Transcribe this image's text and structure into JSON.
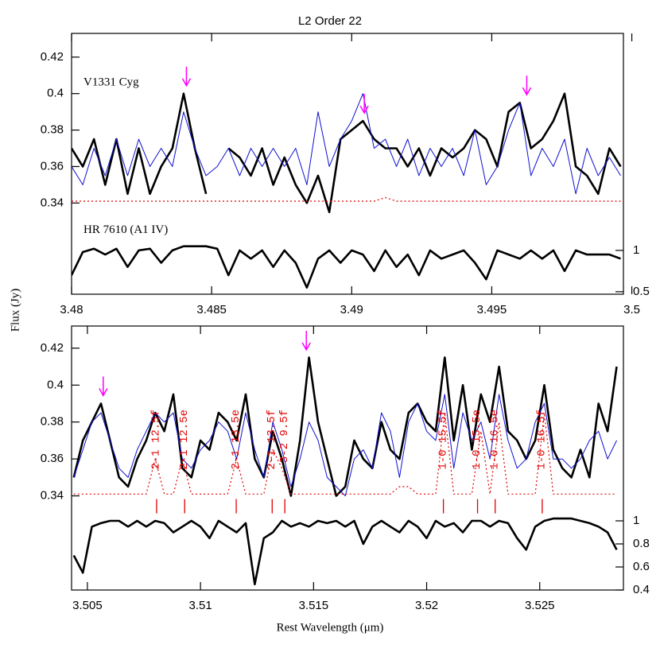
{
  "chart_data": [
    {
      "type": "line",
      "title": "L2 Order 22",
      "ylabel": "Flux (Jy)",
      "x": [
        3.48,
        3.4804,
        3.4808,
        3.4812,
        3.4816,
        3.482,
        3.4824,
        3.4828,
        3.4832,
        3.4836,
        3.484,
        3.4844,
        3.4848,
        3.4852,
        3.4856,
        3.486,
        3.4864,
        3.4868,
        3.4872,
        3.4876,
        3.488,
        3.4884,
        3.4888,
        3.4892,
        3.4896,
        3.49,
        3.4904,
        3.4908,
        3.4912,
        3.4916,
        3.492,
        3.4924,
        3.4928,
        3.4932,
        3.4936,
        3.494,
        3.4944,
        3.4948,
        3.4952,
        3.4956,
        3.496,
        3.4964,
        3.4968,
        3.4972,
        3.4976,
        3.498,
        3.4984,
        3.4988,
        3.4992,
        3.4996
      ],
      "series": [
        {
          "name": "V1331 Cyg",
          "color": "#000000",
          "width": 2.6,
          "linestyle": "solid",
          "values": [
            0.37,
            0.36,
            0.375,
            0.35,
            0.375,
            0.345,
            0.37,
            0.345,
            0.36,
            0.37,
            0.4,
            0.37,
            0.345,
            null,
            0.37,
            0.365,
            0.355,
            0.37,
            0.35,
            0.365,
            0.35,
            0.34,
            0.355,
            0.335,
            0.375,
            0.38,
            0.385,
            0.375,
            0.37,
            0.37,
            0.36,
            0.37,
            0.355,
            0.37,
            0.365,
            0.37,
            0.38,
            0.375,
            0.36,
            0.39,
            0.395,
            0.37,
            0.375,
            0.385,
            0.4,
            0.36,
            0.355,
            0.345,
            0.37,
            0.36
          ]
        },
        {
          "color": "#1010d0",
          "width": 1,
          "linestyle": "solid",
          "values": [
            0.36,
            0.35,
            0.37,
            0.355,
            0.375,
            0.355,
            0.375,
            0.36,
            0.37,
            0.36,
            0.39,
            0.37,
            0.355,
            0.36,
            0.37,
            0.355,
            0.37,
            0.36,
            0.37,
            0.36,
            0.37,
            0.35,
            0.39,
            0.36,
            0.375,
            0.385,
            0.4,
            0.37,
            0.375,
            0.36,
            0.375,
            0.355,
            0.37,
            0.36,
            0.37,
            0.355,
            0.38,
            0.35,
            0.36,
            0.38,
            0.395,
            0.355,
            0.37,
            0.36,
            0.375,
            0.345,
            0.37,
            0.355,
            0.365,
            0.355
          ]
        },
        {
          "color": "#e00000",
          "width": 1.2,
          "linestyle": "dotted",
          "values": [
            0.341,
            0.341,
            0.341,
            0.341,
            0.341,
            0.341,
            0.341,
            0.341,
            0.341,
            0.341,
            0.341,
            0.341,
            0.341,
            0.341,
            0.341,
            0.341,
            0.341,
            0.341,
            0.341,
            0.341,
            0.341,
            0.341,
            0.341,
            0.341,
            0.341,
            0.341,
            0.341,
            0.341,
            0.343,
            0.341,
            0.341,
            0.341,
            0.341,
            0.341,
            0.341,
            0.341,
            0.341,
            0.341,
            0.341,
            0.341,
            0.341,
            0.341,
            0.341,
            0.341,
            0.341,
            0.341,
            0.341,
            0.341,
            0.341,
            0.341
          ]
        },
        {
          "name": "HR 7610 (A1 IV)",
          "color": "#000000",
          "width": 2.6,
          "linestyle": "solid",
          "axis": "y2",
          "values": [
            0.7,
            0.98,
            1.02,
            0.95,
            1.02,
            0.8,
            1.0,
            1.02,
            0.85,
            1.0,
            1.05,
            1.05,
            1.05,
            1.02,
            0.7,
            1.0,
            0.9,
            1.0,
            0.8,
            1.0,
            0.85,
            0.55,
            0.9,
            1.0,
            0.85,
            1.0,
            0.95,
            0.75,
            1.0,
            0.8,
            0.95,
            0.7,
            1.0,
            0.9,
            0.95,
            1.0,
            0.85,
            0.65,
            1.0,
            0.95,
            0.9,
            1.0,
            0.9,
            1.0,
            0.75,
            1.0,
            0.95,
            0.95,
            0.95,
            0.9
          ]
        }
      ],
      "markers": [
        3.4841,
        3.49045,
        3.49625
      ],
      "marker_color": "#ff00ff",
      "xlim": [
        3.48,
        3.4997
      ],
      "xticks": [
        3.48,
        3.485,
        3.49,
        3.495,
        3.5
      ],
      "ylim": [
        0.29,
        0.433
      ],
      "yticks": [
        0.34,
        0.36,
        0.38,
        0.4,
        0.42
      ],
      "y2lim": [
        0.47,
        3.625
      ],
      "y2ticks": [
        0.5,
        1
      ]
    },
    {
      "type": "line",
      "xlabel": "Rest Wavelength (μm)",
      "x": [
        3.5044,
        3.5048,
        3.5052,
        3.5056,
        3.506,
        3.5064,
        3.5068,
        3.5072,
        3.5076,
        3.508,
        3.5084,
        3.5088,
        3.5092,
        3.5096,
        3.51,
        3.5104,
        3.5108,
        3.5112,
        3.5116,
        3.512,
        3.5124,
        3.5128,
        3.5132,
        3.5136,
        3.514,
        3.5144,
        3.5148,
        3.5152,
        3.5156,
        3.516,
        3.5164,
        3.5168,
        3.5172,
        3.5176,
        3.518,
        3.5184,
        3.5188,
        3.5192,
        3.5196,
        3.52,
        3.5204,
        3.5208,
        3.5212,
        3.5216,
        3.522,
        3.5224,
        3.5228,
        3.5232,
        3.5236,
        3.524,
        3.5244,
        3.5248,
        3.5252,
        3.5256,
        3.526,
        3.5264,
        3.5268,
        3.5272,
        3.5276,
        3.528,
        3.5284
      ],
      "series": [
        {
          "color": "#000000",
          "width": 2.6,
          "linestyle": "solid",
          "values": [
            0.35,
            0.37,
            0.38,
            0.39,
            0.37,
            0.35,
            0.345,
            0.36,
            0.37,
            0.385,
            0.375,
            0.395,
            0.355,
            0.35,
            0.37,
            0.365,
            0.385,
            0.38,
            0.37,
            0.395,
            0.36,
            0.35,
            0.375,
            0.36,
            0.34,
            0.37,
            0.415,
            0.38,
            0.36,
            0.34,
            0.345,
            0.37,
            0.36,
            0.355,
            0.38,
            0.365,
            0.36,
            0.385,
            0.39,
            0.38,
            0.375,
            0.415,
            0.37,
            0.4,
            0.365,
            0.395,
            0.38,
            0.41,
            0.375,
            0.37,
            0.36,
            0.37,
            0.4,
            0.365,
            0.355,
            0.35,
            0.365,
            0.35,
            0.39,
            0.375,
            0.41
          ]
        },
        {
          "color": "#1010d0",
          "width": 1,
          "linestyle": "solid",
          "values": [
            0.35,
            0.365,
            0.38,
            0.385,
            0.37,
            0.355,
            0.35,
            0.365,
            0.375,
            0.385,
            0.38,
            0.385,
            0.36,
            0.355,
            0.365,
            0.37,
            0.38,
            0.375,
            0.36,
            0.385,
            0.365,
            0.35,
            0.38,
            0.365,
            0.345,
            0.36,
            0.38,
            0.37,
            0.35,
            0.345,
            0.34,
            0.36,
            0.365,
            0.355,
            0.385,
            0.375,
            0.35,
            0.38,
            0.39,
            0.375,
            0.37,
            0.395,
            0.355,
            0.385,
            0.37,
            0.38,
            0.36,
            0.395,
            0.37,
            0.355,
            0.36,
            0.38,
            0.39,
            0.36,
            0.36,
            0.355,
            0.36,
            0.37,
            0.375,
            0.36,
            0.37
          ]
        },
        {
          "color": "#e00000",
          "width": 1.2,
          "linestyle": "dotted",
          "values": [
            0.341,
            0.341,
            0.341,
            0.341,
            0.341,
            0.341,
            0.341,
            0.341,
            0.341,
            0.36,
            0.341,
            0.341,
            0.36,
            0.341,
            0.341,
            0.341,
            0.341,
            0.341,
            0.36,
            0.341,
            0.341,
            0.341,
            0.365,
            0.355,
            0.341,
            0.341,
            0.341,
            0.341,
            0.341,
            0.341,
            0.341,
            0.341,
            0.341,
            0.341,
            0.341,
            0.341,
            0.345,
            0.345,
            0.341,
            0.341,
            0.341,
            0.385,
            0.341,
            0.341,
            0.341,
            0.375,
            0.341,
            0.38,
            0.341,
            0.341,
            0.341,
            0.341,
            0.385,
            0.341,
            0.341,
            0.341,
            0.341,
            0.341,
            0.341,
            0.341,
            0.341
          ]
        },
        {
          "color": "#000000",
          "width": 2.6,
          "linestyle": "solid",
          "axis": "y2",
          "values": [
            0.7,
            0.55,
            0.95,
            0.98,
            1.0,
            1.0,
            0.95,
            1.0,
            0.95,
            1.0,
            0.98,
            0.9,
            0.95,
            1.0,
            0.95,
            0.85,
            1.0,
            0.95,
            0.9,
            0.98,
            0.45,
            0.85,
            0.9,
            1.0,
            0.95,
            0.98,
            0.95,
            1.0,
            0.98,
            1.0,
            0.95,
            1.0,
            0.8,
            0.95,
            1.0,
            0.95,
            0.9,
            1.0,
            0.95,
            0.85,
            1.0,
            0.95,
            0.98,
            0.9,
            1.0,
            1.0,
            0.95,
            1.0,
            0.98,
            0.85,
            0.75,
            0.95,
            1.0,
            1.02,
            1.02,
            1.02,
            1.0,
            0.98,
            0.95,
            0.9,
            0.75
          ]
        }
      ],
      "markers": [
        3.5057,
        3.51468
      ],
      "marker_color": "#ff00ff",
      "annotations": [
        {
          "x": 3.50806,
          "text": "2-1 12.5f"
        },
        {
          "x": 3.5093,
          "text": "2-1 12.5e"
        },
        {
          "x": 3.51158,
          "text": "2-1 13.5e"
        },
        {
          "x": 3.51317,
          "text": "2-1 13.5f"
        },
        {
          "x": 3.51373,
          "text": "3-2 9.5f"
        },
        {
          "x": 3.52074,
          "text": "1-0 15.5f"
        },
        {
          "x": 3.52225,
          "text": "1-0 15.5e"
        },
        {
          "x": 3.52303,
          "text": "1-0 16.5e"
        },
        {
          "x": 3.52511,
          "text": "1-0 16.5f"
        }
      ],
      "annotation_color": "#e00000",
      "xlim": [
        3.5043,
        3.5287
      ],
      "xticks": [
        3.505,
        3.51,
        3.515,
        3.52,
        3.525
      ],
      "ylim": [
        0.289,
        0.432
      ],
      "yticks": [
        0.34,
        0.36,
        0.38,
        0.4,
        0.42
      ],
      "y2lim": [
        0.4,
        2.69
      ],
      "y2ticks": [
        0.4,
        0.6,
        0.8,
        1
      ]
    }
  ]
}
